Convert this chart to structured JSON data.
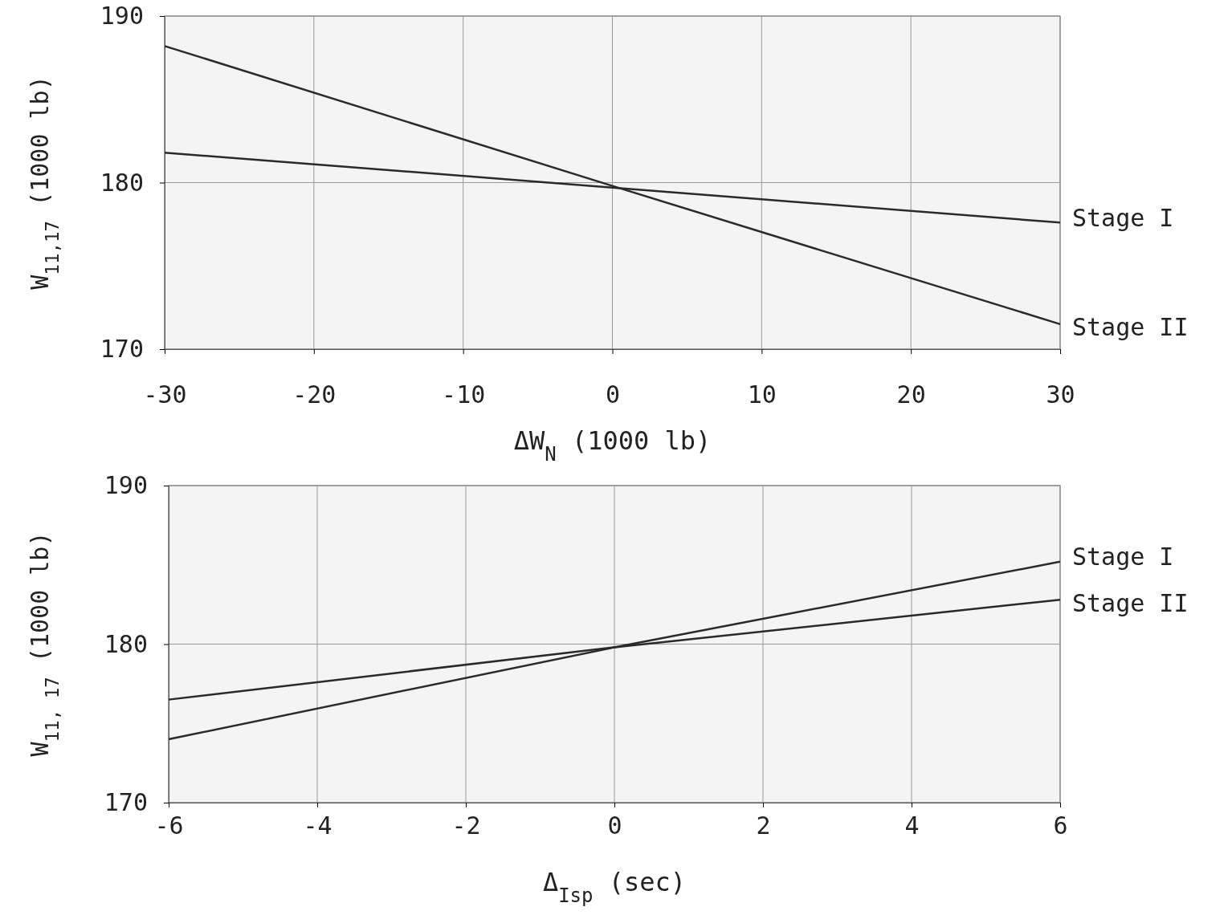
{
  "chart_data": [
    {
      "type": "line",
      "xlabel": "ΔW$_{N}$ (1000 lb)",
      "ylabel": "W$_{11,17}$ (1000 lb)",
      "xlim": [
        -30,
        30
      ],
      "xticks": [
        -30,
        -20,
        -10,
        0,
        10,
        20,
        30
      ],
      "ylim": [
        170,
        190
      ],
      "yticks": [
        170,
        180,
        190
      ],
      "grid": true,
      "x": [
        -30,
        0,
        30
      ],
      "series": [
        {
          "name": "Stage I",
          "color": "#2a2a2a",
          "values": [
            181.8,
            179.7,
            177.6
          ]
        },
        {
          "name": "Stage II",
          "color": "#2a2a2a",
          "values": [
            188.2,
            179.8,
            171.5
          ]
        }
      ]
    },
    {
      "type": "line",
      "xlabel": "Δ$_{Isp}$ (sec)",
      "ylabel": "W$_{11, 17}$ (1000 lb)",
      "xlim": [
        -6,
        6
      ],
      "xticks": [
        -6,
        -4,
        -2,
        0,
        2,
        4,
        6
      ],
      "ylim": [
        170,
        190
      ],
      "yticks": [
        170,
        180,
        190
      ],
      "grid": true,
      "x": [
        -6,
        0,
        6
      ],
      "series": [
        {
          "name": "Stage I",
          "color": "#2a2a2a",
          "values": [
            174.0,
            179.8,
            185.2
          ]
        },
        {
          "name": "Stage II",
          "color": "#2a2a2a",
          "values": [
            176.5,
            179.8,
            182.8
          ]
        }
      ]
    }
  ]
}
